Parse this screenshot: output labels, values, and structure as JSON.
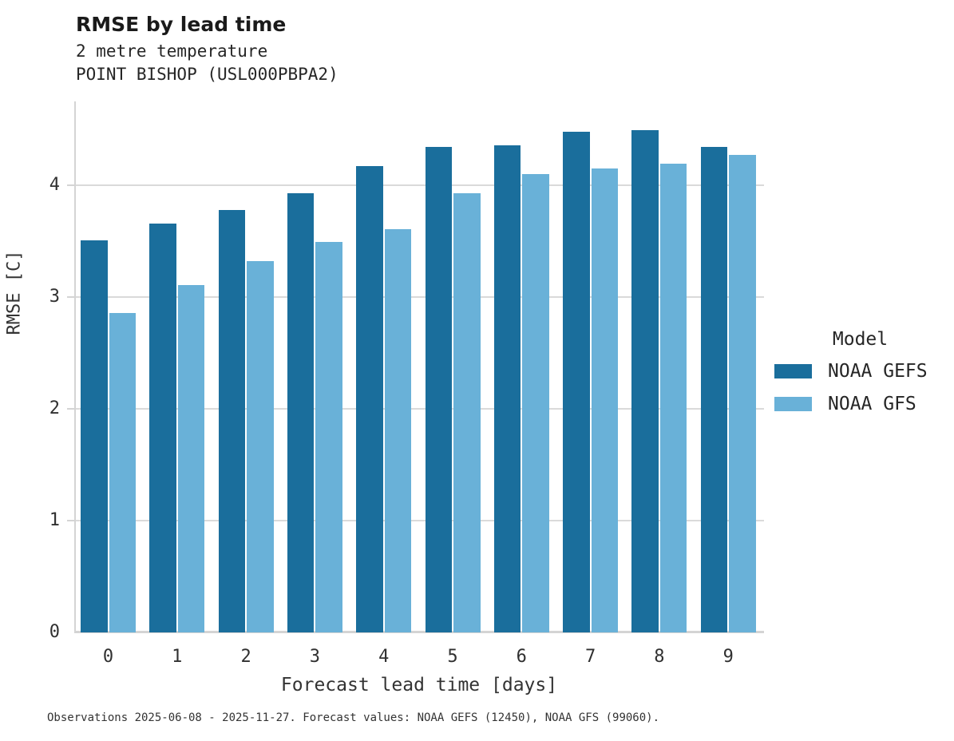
{
  "header": {
    "title": "RMSE by lead time",
    "subtitle1": "2 metre temperature",
    "subtitle2": "POINT BISHOP (USL000PBPA2)"
  },
  "footer": {
    "caption": "Observations 2025-06-08 - 2025-11-27. Forecast values: NOAA GEFS (12450), NOAA GFS (99060)."
  },
  "legend": {
    "title": "Model",
    "entries": [
      {
        "label": "NOAA GEFS",
        "color": "#1a6e9c"
      },
      {
        "label": "NOAA GFS",
        "color": "#69b1d8"
      }
    ]
  },
  "chart_data": {
    "type": "bar",
    "title": "RMSE by lead time",
    "subtitle": [
      "2 metre temperature",
      "POINT BISHOP (USL000PBPA2)"
    ],
    "xlabel": "Forecast lead time [days]",
    "ylabel": "RMSE [C]",
    "categories": [
      "0",
      "1",
      "2",
      "3",
      "4",
      "5",
      "6",
      "7",
      "8",
      "9"
    ],
    "series": [
      {
        "name": "NOAA GEFS",
        "color": "#1a6e9c",
        "values": [
          3.51,
          3.66,
          3.78,
          3.93,
          4.17,
          4.34,
          4.36,
          4.48,
          4.49,
          4.34
        ]
      },
      {
        "name": "NOAA GFS",
        "color": "#69b1d8",
        "values": [
          2.86,
          3.11,
          3.32,
          3.49,
          3.61,
          3.93,
          4.1,
          4.15,
          4.19,
          4.27
        ]
      }
    ],
    "ylim": [
      0,
      4.75
    ],
    "yticks": [
      0,
      1,
      2,
      3,
      4
    ],
    "grid": "horizontal",
    "legend_position": "right",
    "caption": "Observations 2025-06-08 - 2025-11-27. Forecast values: NOAA GEFS (12450), NOAA GFS (99060)."
  }
}
